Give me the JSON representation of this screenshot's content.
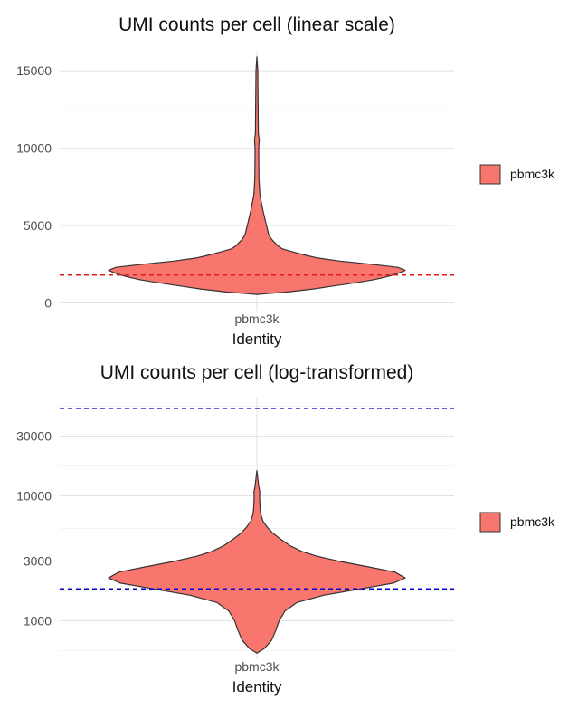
{
  "chart_data": [
    {
      "type": "violin",
      "title": "UMI counts per cell (linear scale)",
      "xlabel": "Identity",
      "ylabel": "",
      "categories": [
        "pbmc3k"
      ],
      "yscale": "linear",
      "yticks": [
        0,
        5000,
        10000,
        15000
      ],
      "ytick_labels": [
        "0",
        "5000",
        "10000",
        "15000"
      ],
      "ylim": [
        -500,
        16300
      ],
      "fill_color": "#F8766D",
      "outline_color": "#333333",
      "legend": {
        "position": "right",
        "entries": [
          "pbmc3k"
        ]
      },
      "grid": true,
      "threshold_line": {
        "value": 1800,
        "color": "#E41A1C",
        "style": "dashed"
      },
      "violin_profile": [
        {
          "y": 550,
          "half_width": 0.0
        },
        {
          "y": 600,
          "half_width": 0.07
        },
        {
          "y": 700,
          "half_width": 0.2
        },
        {
          "y": 900,
          "half_width": 0.38
        },
        {
          "y": 1100,
          "half_width": 0.52
        },
        {
          "y": 1300,
          "half_width": 0.66
        },
        {
          "y": 1500,
          "half_width": 0.79
        },
        {
          "y": 1700,
          "half_width": 0.88
        },
        {
          "y": 1900,
          "half_width": 0.95
        },
        {
          "y": 2100,
          "half_width": 1.0
        },
        {
          "y": 2300,
          "half_width": 0.95
        },
        {
          "y": 2500,
          "half_width": 0.77
        },
        {
          "y": 2700,
          "half_width": 0.56
        },
        {
          "y": 2900,
          "half_width": 0.41
        },
        {
          "y": 3100,
          "half_width": 0.32
        },
        {
          "y": 3300,
          "half_width": 0.24
        },
        {
          "y": 3500,
          "half_width": 0.17
        },
        {
          "y": 3700,
          "half_width": 0.14
        },
        {
          "y": 3900,
          "half_width": 0.12
        },
        {
          "y": 4100,
          "half_width": 0.1
        },
        {
          "y": 4400,
          "half_width": 0.08
        },
        {
          "y": 4800,
          "half_width": 0.07
        },
        {
          "y": 5200,
          "half_width": 0.06
        },
        {
          "y": 5600,
          "half_width": 0.05
        },
        {
          "y": 6000,
          "half_width": 0.04
        },
        {
          "y": 6500,
          "half_width": 0.03
        },
        {
          "y": 7000,
          "half_width": 0.02
        },
        {
          "y": 8000,
          "half_width": 0.014
        },
        {
          "y": 9000,
          "half_width": 0.013
        },
        {
          "y": 10000,
          "half_width": 0.012
        },
        {
          "y": 10500,
          "half_width": 0.016
        },
        {
          "y": 11000,
          "half_width": 0.01
        },
        {
          "y": 13000,
          "half_width": 0.008
        },
        {
          "y": 15000,
          "half_width": 0.006
        },
        {
          "y": 15900,
          "half_width": 0.0
        }
      ]
    },
    {
      "type": "violin",
      "title": "UMI counts per cell (log-transformed)",
      "xlabel": "Identity",
      "ylabel": "",
      "categories": [
        "pbmc3k"
      ],
      "yscale": "log10",
      "yticks": [
        1000,
        3000,
        10000,
        30000
      ],
      "ytick_labels": [
        "1000",
        "3000",
        "10000",
        "30000"
      ],
      "ylim": [
        500,
        60000
      ],
      "fill_color": "#F8766D",
      "outline_color": "#333333",
      "legend": {
        "position": "right",
        "entries": [
          "pbmc3k"
        ]
      },
      "grid": true,
      "threshold_lines": [
        {
          "value": 1800,
          "color": "#0000CC",
          "style": "dashed"
        },
        {
          "value": 50000,
          "color": "#0000CC",
          "style": "dashed"
        }
      ],
      "violin_profile": [
        {
          "y": 550,
          "half_width": 0.0
        },
        {
          "y": 600,
          "half_width": 0.05
        },
        {
          "y": 700,
          "half_width": 0.1
        },
        {
          "y": 850,
          "half_width": 0.13
        },
        {
          "y": 1000,
          "half_width": 0.15
        },
        {
          "y": 1200,
          "half_width": 0.19
        },
        {
          "y": 1400,
          "half_width": 0.27
        },
        {
          "y": 1600,
          "half_width": 0.45
        },
        {
          "y": 1800,
          "half_width": 0.7
        },
        {
          "y": 2000,
          "half_width": 0.92
        },
        {
          "y": 2200,
          "half_width": 1.0
        },
        {
          "y": 2450,
          "half_width": 0.93
        },
        {
          "y": 2700,
          "half_width": 0.75
        },
        {
          "y": 3000,
          "half_width": 0.55
        },
        {
          "y": 3300,
          "half_width": 0.4
        },
        {
          "y": 3600,
          "half_width": 0.3
        },
        {
          "y": 4000,
          "half_width": 0.22
        },
        {
          "y": 4500,
          "half_width": 0.16
        },
        {
          "y": 5000,
          "half_width": 0.11
        },
        {
          "y": 5600,
          "half_width": 0.07
        },
        {
          "y": 6300,
          "half_width": 0.04
        },
        {
          "y": 7200,
          "half_width": 0.025
        },
        {
          "y": 8500,
          "half_width": 0.02
        },
        {
          "y": 10000,
          "half_width": 0.018
        },
        {
          "y": 10600,
          "half_width": 0.02
        },
        {
          "y": 12000,
          "half_width": 0.012
        },
        {
          "y": 15900,
          "half_width": 0.0
        }
      ]
    }
  ]
}
